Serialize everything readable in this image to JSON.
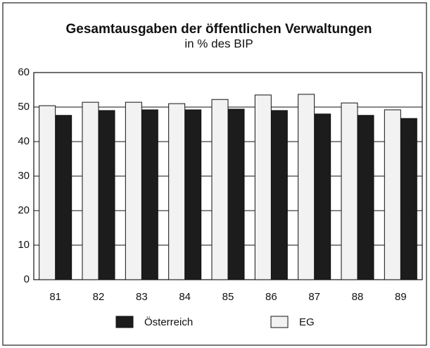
{
  "chart_data": {
    "type": "bar",
    "title": "Gesamtausgaben der öffentlichen Verwaltungen",
    "subtitle": "in % des BIP",
    "categories": [
      "81",
      "82",
      "83",
      "84",
      "85",
      "86",
      "87",
      "88",
      "89"
    ],
    "series": [
      {
        "name": "Österreich",
        "color": "#1c1c1c",
        "values": [
          47.6,
          49.0,
          49.2,
          49.2,
          49.4,
          49.0,
          48.0,
          47.6,
          46.7
        ]
      },
      {
        "name": "EG",
        "color": "#f2f2f2",
        "values": [
          50.4,
          51.4,
          51.4,
          51.0,
          52.2,
          53.5,
          53.7,
          51.2,
          49.2
        ]
      }
    ],
    "ylim": [
      0,
      60
    ],
    "yticks": [
      0,
      10,
      20,
      30,
      40,
      50,
      60
    ],
    "grid": true,
    "legend": "bottom"
  }
}
